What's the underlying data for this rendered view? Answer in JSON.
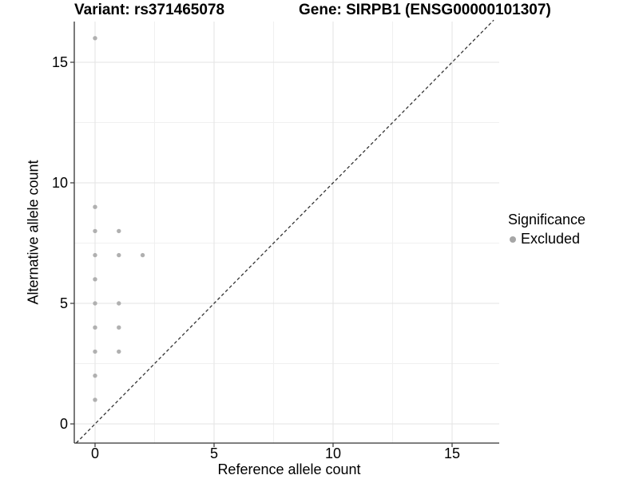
{
  "chart_data": {
    "type": "scatter",
    "titles": {
      "left": "Variant: rs371465078",
      "right": "Gene: SIRPB1 (ENSG00000101307)"
    },
    "xlabel": "Reference allele count",
    "ylabel": "Alternative allele count",
    "xlim": [
      -0.87,
      16.98
    ],
    "ylim": [
      -0.79,
      16.75
    ],
    "x_major_ticks": [
      0,
      5,
      10,
      15
    ],
    "x_minor_ticks": [
      2.5,
      7.5,
      12.5
    ],
    "y_major_ticks": [
      0,
      5,
      10,
      15
    ],
    "y_minor_ticks": [
      2.5,
      7.5,
      12.5
    ],
    "grid": "major and minor light-gray gridlines on white background",
    "identity_line": {
      "equation": "y = x",
      "style": "dashed",
      "color": "#333333"
    },
    "series": [
      {
        "name": "Excluded",
        "color": "#b0b0b0",
        "marker": "circle",
        "points": [
          [
            0,
            1
          ],
          [
            0,
            2
          ],
          [
            0,
            3
          ],
          [
            0,
            4
          ],
          [
            0,
            5
          ],
          [
            0,
            6
          ],
          [
            0,
            7
          ],
          [
            0,
            8
          ],
          [
            0,
            9
          ],
          [
            0,
            16
          ],
          [
            1,
            3
          ],
          [
            1,
            4
          ],
          [
            1,
            5
          ],
          [
            1,
            7
          ],
          [
            1,
            8
          ],
          [
            2,
            7
          ]
        ]
      }
    ],
    "legend": {
      "title": "Significance",
      "position": "right",
      "entries": [
        {
          "label": "Excluded",
          "color": "#a6a6a6"
        }
      ]
    },
    "colors": {
      "axis_line": "#333333",
      "tick_text": "#000000",
      "grid_major": "#e3e3e3",
      "grid_minor": "#f0f0f0",
      "background": "#ffffff"
    }
  }
}
